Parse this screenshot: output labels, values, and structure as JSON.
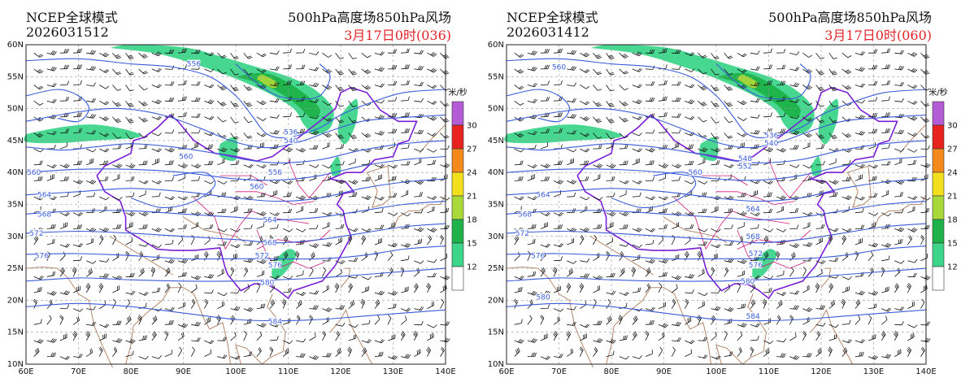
{
  "panels": [
    {
      "model_name": "NCEP全球模式",
      "run_time": "2026031512",
      "product": "500hPa高度场850hPa风场",
      "valid_time": "3月17日0时(036)",
      "contour_labels": [
        {
          "value": "556",
          "lon": 92,
          "lat": 57
        },
        {
          "value": "536",
          "lon": 110.5,
          "lat": 46.3
        },
        {
          "value": "540",
          "lon": 110.5,
          "lat": 45.0
        },
        {
          "value": "560",
          "lon": 90.5,
          "lat": 42.5
        },
        {
          "value": "560",
          "lon": 61.5,
          "lat": 40.0
        },
        {
          "value": "556",
          "lon": 107.5,
          "lat": 40.0
        },
        {
          "value": "560",
          "lon": 104,
          "lat": 37.8
        },
        {
          "value": "564",
          "lon": 63.5,
          "lat": 36.5
        },
        {
          "value": "564",
          "lon": 106.5,
          "lat": 32.6
        },
        {
          "value": "568",
          "lon": 63.5,
          "lat": 33.5
        },
        {
          "value": "572",
          "lon": 62,
          "lat": 30.5
        },
        {
          "value": "568",
          "lon": 106.5,
          "lat": 29.0
        },
        {
          "value": "576",
          "lon": 63,
          "lat": 27.0
        },
        {
          "value": "572",
          "lon": 105,
          "lat": 27.0
        },
        {
          "value": "576",
          "lon": 107.5,
          "lat": 25.5
        },
        {
          "value": "580",
          "lon": 106,
          "lat": 22.8
        },
        {
          "value": "584",
          "lon": 107.5,
          "lat": 16.7
        }
      ]
    },
    {
      "model_name": "NCEP全球模式",
      "run_time": "2026031412",
      "product": "500hPa高度场850hPa风场",
      "valid_time": "3月17日0时(060)",
      "contour_labels": [
        {
          "value": "560",
          "lon": 70,
          "lat": 56.5
        },
        {
          "value": "536",
          "lon": 110.5,
          "lat": 45.8
        },
        {
          "value": "540",
          "lon": 110.5,
          "lat": 44.6
        },
        {
          "value": "548",
          "lon": 105.5,
          "lat": 42.2
        },
        {
          "value": "552",
          "lon": 105.5,
          "lat": 41.0
        },
        {
          "value": "560",
          "lon": 96,
          "lat": 40.0
        },
        {
          "value": "564",
          "lon": 67,
          "lat": 36.5
        },
        {
          "value": "564",
          "lon": 107,
          "lat": 34.3
        },
        {
          "value": "568",
          "lon": 63.5,
          "lat": 33.5
        },
        {
          "value": "572",
          "lon": 63,
          "lat": 30.5
        },
        {
          "value": "568",
          "lon": 107,
          "lat": 30.0
        },
        {
          "value": "572",
          "lon": 107.5,
          "lat": 27.3
        },
        {
          "value": "576",
          "lon": 66,
          "lat": 27.0
        },
        {
          "value": "576",
          "lon": 107.5,
          "lat": 25.5
        },
        {
          "value": "580",
          "lon": 106,
          "lat": 23.0
        },
        {
          "value": "580",
          "lon": 67,
          "lat": 20.5
        },
        {
          "value": "584",
          "lon": 107,
          "lat": 17.5
        }
      ]
    }
  ],
  "axes": {
    "lat_labels": [
      "10N",
      "15N",
      "20N",
      "25N",
      "30N",
      "35N",
      "40N",
      "45N",
      "50N",
      "55N",
      "60N"
    ],
    "lon_labels": [
      "60E",
      "70E",
      "80E",
      "90E",
      "100E",
      "110E",
      "120E",
      "130E",
      "140E"
    ],
    "lon_range": [
      60,
      140
    ],
    "lat_range": [
      10,
      60
    ]
  },
  "colorbar": {
    "unit": "米/秒",
    "levels": [
      "12",
      "15",
      "18",
      "21",
      "24",
      "27",
      "30"
    ],
    "colors": [
      "#ffffff",
      "#3dd58a",
      "#1fb24a",
      "#a8d83a",
      "#f2e01e",
      "#f58a1c",
      "#e8221f",
      "#b45bd6"
    ]
  },
  "colors": {
    "contour": "#3b5bd9",
    "province_border": "#d11a7a",
    "country_border": "#7a1fd6",
    "coast": "#b08870",
    "grid": "#999999",
    "barb": "#111111"
  }
}
